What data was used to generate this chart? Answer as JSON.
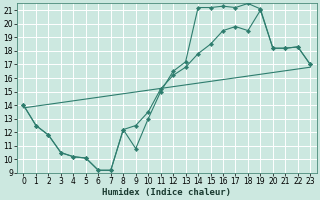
{
  "xlabel": "Humidex (Indice chaleur)",
  "bg_color": "#cce8e0",
  "grid_color": "#ffffff",
  "line_color": "#2e7d6e",
  "xlim": [
    -0.5,
    23.5
  ],
  "ylim": [
    9,
    21.5
  ],
  "xticks": [
    0,
    1,
    2,
    3,
    4,
    5,
    6,
    7,
    8,
    9,
    10,
    11,
    12,
    13,
    14,
    15,
    16,
    17,
    18,
    19,
    20,
    21,
    22,
    23
  ],
  "yticks": [
    9,
    10,
    11,
    12,
    13,
    14,
    15,
    16,
    17,
    18,
    19,
    20,
    21
  ],
  "curve1_x": [
    0,
    1,
    2,
    3,
    4,
    5,
    6,
    7,
    8,
    9,
    10,
    11,
    12,
    13,
    14,
    15,
    16,
    17,
    18,
    19,
    20,
    21,
    22,
    23
  ],
  "curve1_y": [
    14,
    12.5,
    11.8,
    10.5,
    10.2,
    10.1,
    9.2,
    9.2,
    12.2,
    10.8,
    13.0,
    15.0,
    16.5,
    17.2,
    21.2,
    21.2,
    21.3,
    21.2,
    21.5,
    21.1,
    18.2,
    18.2,
    18.3,
    17.0
  ],
  "curve2_x": [
    0,
    1,
    2,
    3,
    4,
    5,
    6,
    7,
    8,
    9,
    10,
    11,
    12,
    13,
    14,
    15,
    16,
    17,
    18,
    19,
    20,
    21,
    22,
    23
  ],
  "curve2_y": [
    14,
    12.5,
    11.8,
    10.5,
    10.2,
    10.1,
    9.2,
    9.2,
    12.2,
    12.5,
    13.5,
    15.2,
    16.2,
    16.8,
    17.8,
    18.5,
    19.5,
    19.8,
    19.5,
    21.0,
    18.2,
    18.2,
    18.3,
    17.0
  ],
  "curve3_x": [
    0,
    23
  ],
  "curve3_y": [
    13.8,
    16.8
  ],
  "tick_fontsize": 5.5,
  "xlabel_fontsize": 6.5
}
